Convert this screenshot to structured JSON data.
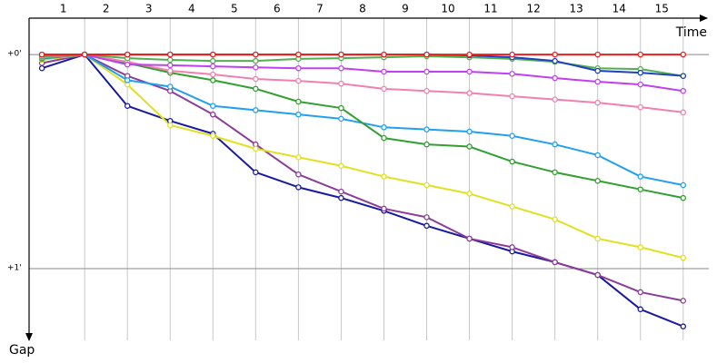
{
  "chart_data": {
    "type": "line",
    "x_label": "Time",
    "y_label": "Gap",
    "x": [
      0,
      1,
      2,
      3,
      4,
      5,
      6,
      7,
      8,
      9,
      10,
      11,
      12,
      13,
      14,
      15
    ],
    "xlim": [
      -0.3,
      15.6
    ],
    "xticks": [
      {
        "value": 0.5,
        "label": "1"
      },
      {
        "value": 1.5,
        "label": "2"
      },
      {
        "value": 2.5,
        "label": "3"
      },
      {
        "value": 3.5,
        "label": "4"
      },
      {
        "value": 4.5,
        "label": "5"
      },
      {
        "value": 5.5,
        "label": "6"
      },
      {
        "value": 6.5,
        "label": "7"
      },
      {
        "value": 7.5,
        "label": "8"
      },
      {
        "value": 8.5,
        "label": "9"
      },
      {
        "value": 9.5,
        "label": "10"
      },
      {
        "value": 10.5,
        "label": "11"
      },
      {
        "value": 11.5,
        "label": "12"
      },
      {
        "value": 12.5,
        "label": "13"
      },
      {
        "value": 13.5,
        "label": "14"
      },
      {
        "value": 14.5,
        "label": "15"
      }
    ],
    "ylim": [
      -0.17,
      1.335
    ],
    "y_inverted": true,
    "yticks": [
      {
        "value": 0,
        "label": "+0'"
      },
      {
        "value": 1,
        "label": "+1'"
      }
    ],
    "grid": true,
    "series": [
      {
        "color": "#1a1aa0",
        "values": [
          0.064,
          0,
          0.24,
          0.31,
          0.37,
          0.55,
          0.62,
          0.67,
          0.73,
          0.8,
          0.86,
          0.92,
          0.97,
          1.03,
          1.19,
          1.27
        ]
      },
      {
        "color": "#8b3d98",
        "values": [
          0.04,
          0,
          0.1,
          0.17,
          0.28,
          0.42,
          0.56,
          0.64,
          0.72,
          0.76,
          0.86,
          0.9,
          0.97,
          1.03,
          1.11,
          1.15
        ]
      },
      {
        "color": "#e0e020",
        "values": [
          0.025,
          0,
          0.14,
          0.33,
          0.38,
          0.44,
          0.48,
          0.52,
          0.57,
          0.61,
          0.65,
          0.71,
          0.77,
          0.86,
          0.9,
          0.95
        ]
      },
      {
        "color": "#20a0f0",
        "values": [
          0.02,
          0,
          0.12,
          0.15,
          0.24,
          0.26,
          0.28,
          0.3,
          0.34,
          0.35,
          0.36,
          0.38,
          0.42,
          0.47,
          0.57,
          0.61
        ]
      },
      {
        "color": "#30a030",
        "values": [
          0.017,
          0,
          0.04,
          0.085,
          0.12,
          0.16,
          0.22,
          0.25,
          0.39,
          0.42,
          0.43,
          0.5,
          0.55,
          0.59,
          0.63,
          0.67
        ]
      },
      {
        "color": "#f080b0",
        "values": [
          0.013,
          0,
          0.034,
          0.076,
          0.093,
          0.114,
          0.123,
          0.136,
          0.16,
          0.17,
          0.18,
          0.195,
          0.21,
          0.225,
          0.246,
          0.27
        ]
      },
      {
        "color": "#c040f0",
        "values": [
          0.008,
          0,
          0.047,
          0.05,
          0.055,
          0.06,
          0.064,
          0.064,
          0.08,
          0.08,
          0.08,
          0.09,
          0.11,
          0.127,
          0.14,
          0.17
        ]
      },
      {
        "color": "#50b050",
        "values": [
          0.008,
          0,
          0.017,
          0.025,
          0.03,
          0.03,
          0.02,
          0.017,
          0.013,
          0.008,
          0.013,
          0.02,
          0.034,
          0.064,
          0.068,
          0.1
        ]
      },
      {
        "color": "#2040c0",
        "values": [
          0,
          0,
          0,
          0,
          0,
          0,
          0,
          0,
          0,
          0,
          0.004,
          0.013,
          0.03,
          0.076,
          0.085,
          0.1
        ]
      },
      {
        "color": "#e82020",
        "values": [
          0,
          0,
          0,
          0,
          0,
          0,
          0,
          0,
          0,
          0,
          0,
          0,
          0,
          0,
          0,
          0
        ]
      }
    ]
  }
}
